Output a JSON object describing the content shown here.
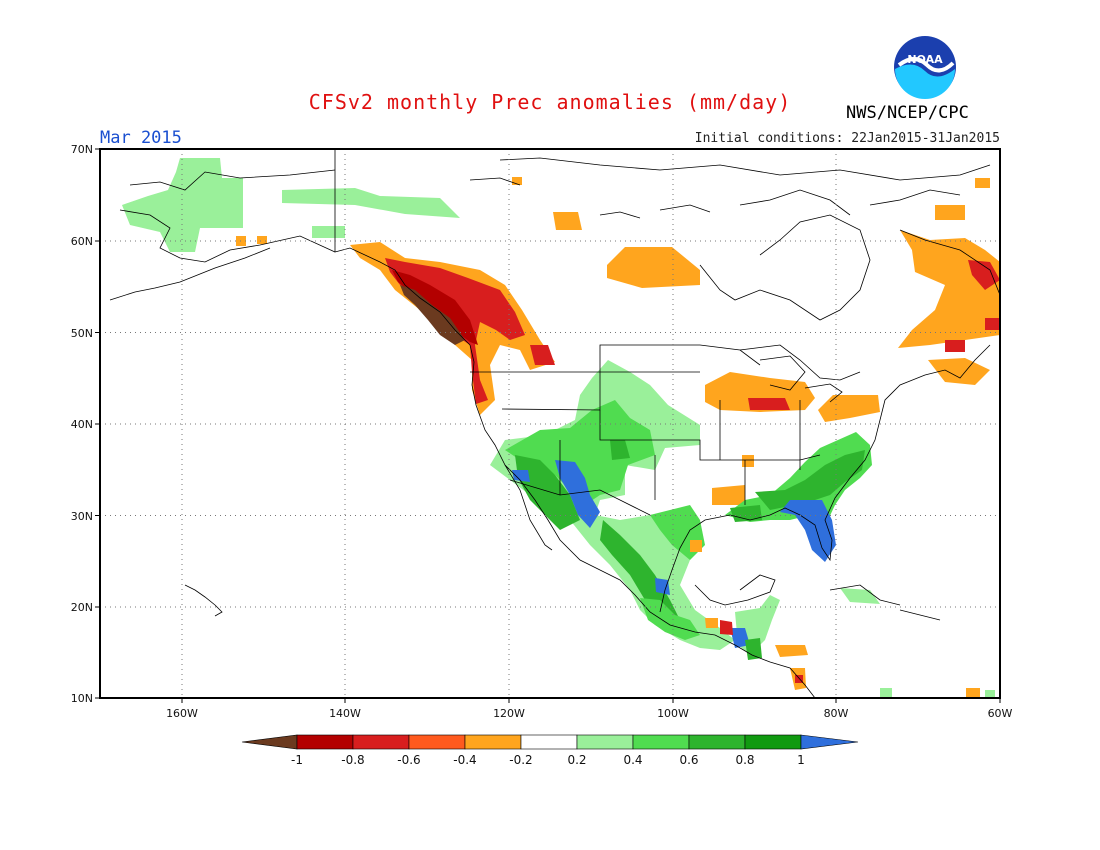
{
  "header": {
    "title": "CFSv2 monthly Prec anomalies (mm/day)",
    "valid_month": "Mar 2015",
    "initial_conditions": "Initial conditions: 22Jan2015-31Jan2015",
    "agency": "NWS/NCEP/CPC",
    "logo_text": "NOAA"
  },
  "map": {
    "projection": "lat-lon",
    "lon_range": [
      -170,
      -60
    ],
    "lat_range": [
      10,
      70
    ],
    "lat_ticks": [
      "10N",
      "20N",
      "30N",
      "40N",
      "50N",
      "60N",
      "70N"
    ],
    "lon_ticks": [
      "160W",
      "140W",
      "120W",
      "100W",
      "80W",
      "60W"
    ],
    "grid": "dotted"
  },
  "colorbar": {
    "labels": [
      "-1",
      "-0.8",
      "-0.6",
      "-0.4",
      "-0.2",
      "0.2",
      "0.4",
      "0.6",
      "0.8",
      "1"
    ],
    "colors": [
      "#6b3a1f",
      "#b30000",
      "#d81e1e",
      "#ff5a1e",
      "#ffa51e",
      "#ffffff",
      "#9af09a",
      "#50dc50",
      "#2eb42e",
      "#109a10",
      "#2f6fdc"
    ]
  },
  "anomaly_regions": {
    "dry_strong": [
      "British Columbia coast",
      "Washington",
      "Oregon coast"
    ],
    "dry": [
      "Yukon / Northern BC",
      "Idaho panhandle",
      "Great Lakes",
      "Pennsylvania / New York",
      "Quebec",
      "Labrador",
      "Nova Scotia",
      "Hudson Bay east",
      "Central America east coast"
    ],
    "wet": [
      "Alaska north slope",
      "Southwest US",
      "Rockies",
      "Texas",
      "Mexico",
      "Southeast US",
      "Central America",
      "Carolinas"
    ],
    "wet_strong": [
      "Florida peninsula",
      "Arizona",
      "Southern Baja",
      "Sonora",
      "Guatemala"
    ]
  }
}
